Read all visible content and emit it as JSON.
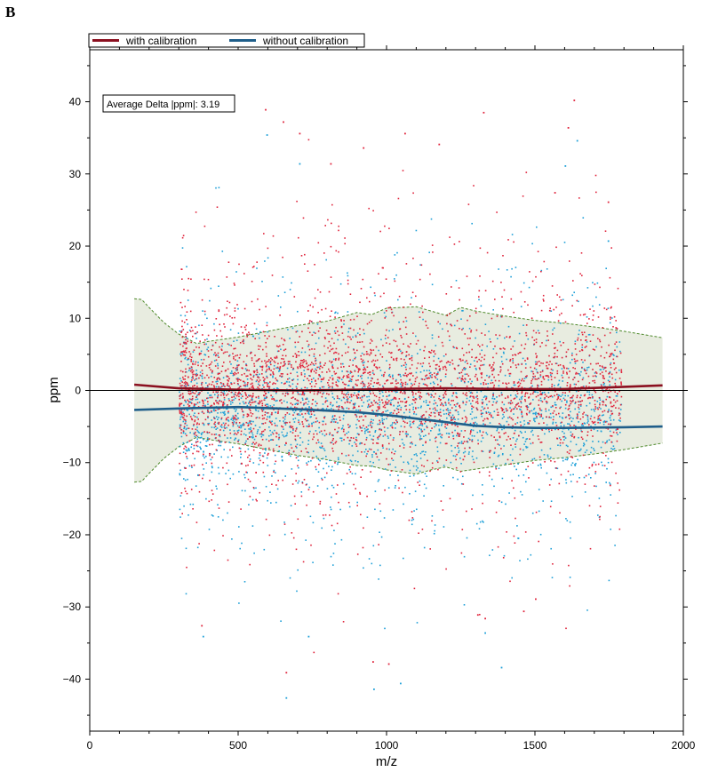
{
  "panel_label": "B",
  "colors": {
    "with_calibration_line": "#8b1020",
    "without_calibration_line": "#1f5e8a",
    "with_calibration_points": "#e0243c",
    "without_calibration_points": "#1ea0d8",
    "band_fill": "#e8ece0",
    "band_edge": "#4f8a2c"
  },
  "chart_data": {
    "type": "scatter",
    "title": "",
    "xlabel": "m/z",
    "ylabel": "ppm",
    "xlim": [
      0,
      2000
    ],
    "ylim": [
      -47,
      47
    ],
    "xticks": [
      0,
      500,
      1000,
      1500,
      2000
    ],
    "yticks": [
      40,
      30,
      20,
      10,
      0,
      -10,
      -20,
      -30,
      -40
    ],
    "ytick_labels": [
      "40",
      "30",
      "20",
      "10",
      "0",
      "−10",
      "−20",
      "−30",
      "−40"
    ],
    "annotation": "Average Delta |ppm|: 3.19",
    "legend": {
      "placement": "top-left",
      "entries": [
        {
          "label": "with calibration",
          "color": "#8b1020"
        },
        {
          "label": "without calibration",
          "color": "#1f5e8a"
        }
      ]
    },
    "series": [
      {
        "name": "with calibration",
        "kind": "trend-line",
        "x": [
          150,
          300,
          500,
          700,
          900,
          1000,
          1200,
          1400,
          1600,
          1800,
          1930
        ],
        "y": [
          0.8,
          0.3,
          0.1,
          0.0,
          0.1,
          0.2,
          0.3,
          0.2,
          0.2,
          0.5,
          0.7
        ]
      },
      {
        "name": "without calibration",
        "kind": "trend-line",
        "x": [
          150,
          300,
          500,
          700,
          900,
          1000,
          1100,
          1200,
          1300,
          1400,
          1500,
          1600,
          1800,
          1930
        ],
        "y": [
          -2.7,
          -2.5,
          -2.3,
          -2.6,
          -3.0,
          -3.4,
          -3.9,
          -4.4,
          -4.9,
          -5.1,
          -5.2,
          -5.2,
          -5.1,
          -5.0
        ]
      },
      {
        "name": "tolerance band upper",
        "kind": "band-edge",
        "x": [
          150,
          175,
          200,
          250,
          300,
          360,
          400,
          500,
          600,
          700,
          800,
          900,
          950,
          1000,
          1100,
          1150,
          1200,
          1250,
          1300,
          1400,
          1500,
          1600,
          1700,
          1800,
          1930
        ],
        "y": [
          12.7,
          12.6,
          11.5,
          9.4,
          7.8,
          6.5,
          6.8,
          7.4,
          8.2,
          9.0,
          9.6,
          10.8,
          10.5,
          11.4,
          11.6,
          11.0,
          10.4,
          11.5,
          11.0,
          10.3,
          9.7,
          9.3,
          8.8,
          8.2,
          7.3
        ]
      },
      {
        "name": "tolerance band lower",
        "kind": "band-edge",
        "x": [
          150,
          175,
          200,
          250,
          300,
          360,
          400,
          500,
          600,
          700,
          800,
          900,
          950,
          1000,
          1100,
          1150,
          1200,
          1250,
          1300,
          1400,
          1500,
          1600,
          1700,
          1800,
          1930
        ],
        "y": [
          -12.7,
          -12.6,
          -11.5,
          -9.4,
          -7.8,
          -6.5,
          -6.8,
          -7.4,
          -8.2,
          -9.0,
          -9.6,
          -10.4,
          -10.5,
          -11.0,
          -11.6,
          -11.0,
          -10.6,
          -11.2,
          -10.9,
          -10.3,
          -9.7,
          -9.3,
          -8.8,
          -8.2,
          -7.3
        ]
      },
      {
        "name": "with calibration points",
        "kind": "scatter-summary",
        "x_range": [
          300,
          1790
        ],
        "center": 0.5,
        "spread": 6.0,
        "count": 3000,
        "outliers": [
          [
            590,
            39.0
          ],
          [
            650,
            37.3
          ],
          [
            705,
            35.7
          ],
          [
            810,
            31.5
          ],
          [
            920,
            33.7
          ],
          [
            1060,
            35.7
          ],
          [
            1175,
            34.2
          ],
          [
            1325,
            38.6
          ],
          [
            1610,
            36.5
          ],
          [
            1630,
            40.3
          ],
          [
            1745,
            26.2
          ],
          [
            1565,
            27.5
          ],
          [
            660,
            -39.0
          ],
          [
            952,
            -37.5
          ],
          [
            1005,
            -37.8
          ],
          [
            375,
            -32.5
          ],
          [
            1305,
            -31.0
          ],
          [
            1330,
            -31.5
          ],
          [
            1460,
            -30.5
          ],
          [
            1500,
            -28.8
          ]
        ]
      },
      {
        "name": "without calibration points",
        "kind": "scatter-summary",
        "x_range": [
          300,
          1790
        ],
        "center": -3.2,
        "spread": 6.0,
        "count": 2200,
        "outliers": [
          [
            595,
            35.5
          ],
          [
            705,
            31.5
          ],
          [
            1600,
            31.2
          ],
          [
            1640,
            34.7
          ],
          [
            1745,
            20.8
          ],
          [
            660,
            -42.5
          ],
          [
            955,
            -41.3
          ],
          [
            1045,
            -40.5
          ],
          [
            1385,
            -38.3
          ],
          [
            380,
            -34.0
          ],
          [
            735,
            -34.0
          ],
          [
            1330,
            -33.5
          ]
        ]
      }
    ]
  }
}
